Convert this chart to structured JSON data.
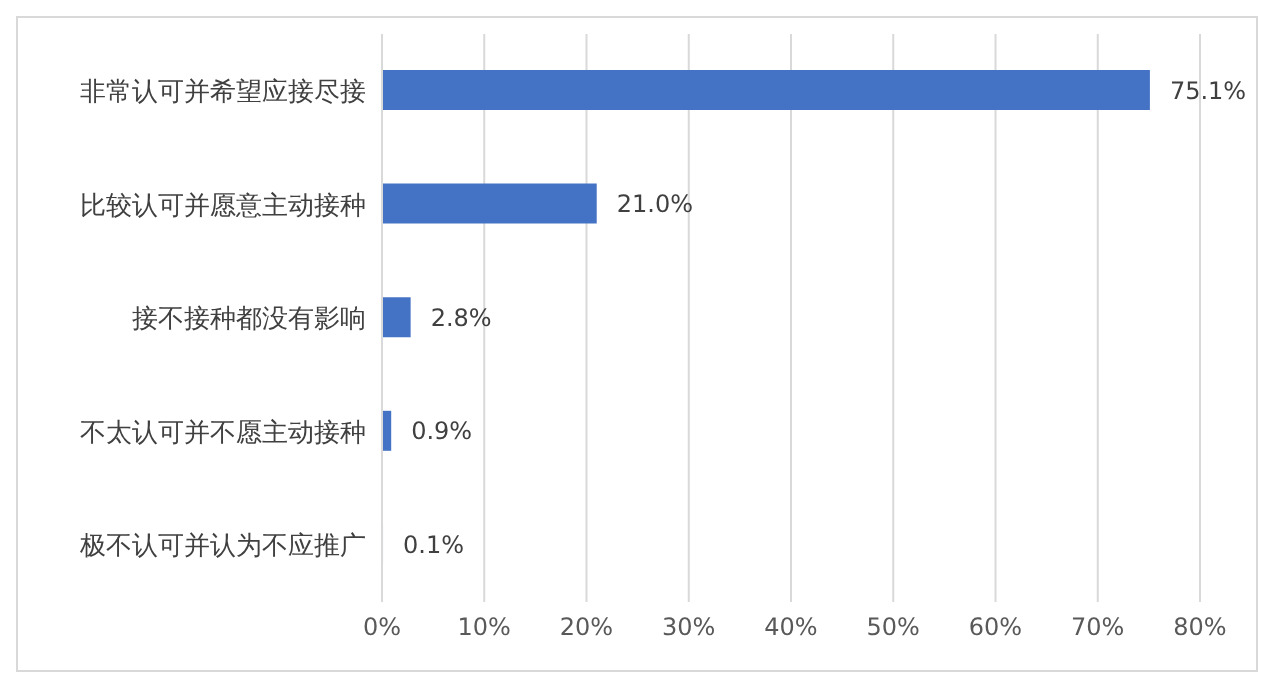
{
  "chart_data": {
    "type": "bar",
    "orientation": "horizontal",
    "categories": [
      "非常认可并希望应接尽接",
      "比较认可并愿意主动接种",
      "接不接种都没有影响",
      "不太认可并不愿主动接种",
      "极不认可并认为不应推广"
    ],
    "values": [
      75.1,
      21.0,
      2.8,
      0.9,
      0.1
    ],
    "value_labels": [
      "75.1%",
      "21.0%",
      "2.8%",
      "0.9%",
      "0.1%"
    ],
    "color": "#4472c4",
    "xlim": [
      0,
      80
    ],
    "xticks": [
      {
        "value": 0,
        "label": "0%"
      },
      {
        "value": 10,
        "label": "10%"
      },
      {
        "value": 20,
        "label": "20%"
      },
      {
        "value": 30,
        "label": "30%"
      },
      {
        "value": 40,
        "label": "40%"
      },
      {
        "value": 50,
        "label": "50%"
      },
      {
        "value": 60,
        "label": "60%"
      },
      {
        "value": 70,
        "label": "70%"
      },
      {
        "value": 80,
        "label": "80%"
      }
    ],
    "grid": "x"
  }
}
